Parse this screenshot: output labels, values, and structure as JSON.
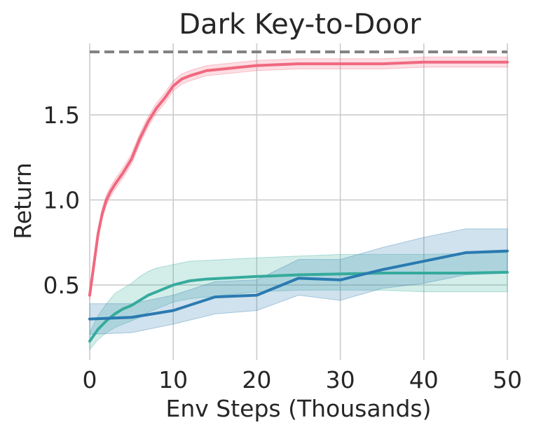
{
  "chart_data": {
    "type": "line",
    "title": "Dark Key-to-Door",
    "xlabel": "Env Steps (Thousands)",
    "ylabel": "Return",
    "xlim": [
      0,
      50
    ],
    "ylim": [
      0.06,
      1.92
    ],
    "xticks": [
      0,
      10,
      20,
      30,
      40,
      50
    ],
    "xtick_labels": [
      "0",
      "10",
      "20",
      "30",
      "40",
      "50"
    ],
    "yticks": [
      0.5,
      1.0,
      1.5
    ],
    "ytick_labels": [
      "0.5",
      "1.0",
      "1.5"
    ],
    "grid": true,
    "reference_line": {
      "y": 1.87,
      "style": "dashed",
      "color": "#808080"
    },
    "series": [
      {
        "color": "#f0687f",
        "x": [
          0,
          0.5,
          1,
          1.5,
          2,
          2.5,
          3,
          4,
          5,
          6,
          7,
          8,
          9,
          10,
          11,
          12,
          14,
          16,
          18,
          20,
          25,
          30,
          35,
          40,
          45,
          50
        ],
        "y": [
          0.44,
          0.62,
          0.8,
          0.92,
          1.0,
          1.05,
          1.09,
          1.16,
          1.24,
          1.36,
          1.46,
          1.54,
          1.6,
          1.67,
          1.71,
          1.73,
          1.76,
          1.77,
          1.78,
          1.79,
          1.8,
          1.8,
          1.8,
          1.81,
          1.81,
          1.81
        ],
        "band": 0.03
      },
      {
        "color": "#36ab9d",
        "x": [
          0,
          1,
          2,
          3,
          4,
          5,
          6,
          7,
          8,
          9,
          10,
          12,
          14,
          16,
          18,
          20,
          25,
          30,
          35,
          40,
          45,
          50
        ],
        "y": [
          0.17,
          0.24,
          0.29,
          0.33,
          0.36,
          0.38,
          0.41,
          0.44,
          0.46,
          0.48,
          0.5,
          0.525,
          0.535,
          0.54,
          0.545,
          0.55,
          0.56,
          0.565,
          0.57,
          0.57,
          0.57,
          0.575
        ],
        "upper": [
          0.22,
          0.32,
          0.39,
          0.45,
          0.48,
          0.51,
          0.55,
          0.58,
          0.6,
          0.61,
          0.62,
          0.64,
          0.645,
          0.65,
          0.655,
          0.66,
          0.67,
          0.68,
          0.68,
          0.68,
          0.685,
          0.69
        ],
        "lower": [
          0.12,
          0.18,
          0.22,
          0.25,
          0.27,
          0.29,
          0.31,
          0.34,
          0.36,
          0.38,
          0.4,
          0.42,
          0.43,
          0.44,
          0.45,
          0.46,
          0.47,
          0.47,
          0.47,
          0.46,
          0.46,
          0.46
        ]
      },
      {
        "color": "#2a7ab0",
        "x": [
          0,
          5,
          10,
          15,
          20,
          25,
          30,
          35,
          40,
          45,
          50
        ],
        "y": [
          0.3,
          0.31,
          0.35,
          0.43,
          0.44,
          0.54,
          0.53,
          0.59,
          0.64,
          0.69,
          0.7
        ],
        "upper": [
          0.39,
          0.39,
          0.44,
          0.52,
          0.53,
          0.65,
          0.65,
          0.72,
          0.78,
          0.83,
          0.83
        ],
        "lower": [
          0.21,
          0.22,
          0.27,
          0.33,
          0.35,
          0.44,
          0.41,
          0.48,
          0.51,
          0.56,
          0.57
        ]
      }
    ]
  }
}
